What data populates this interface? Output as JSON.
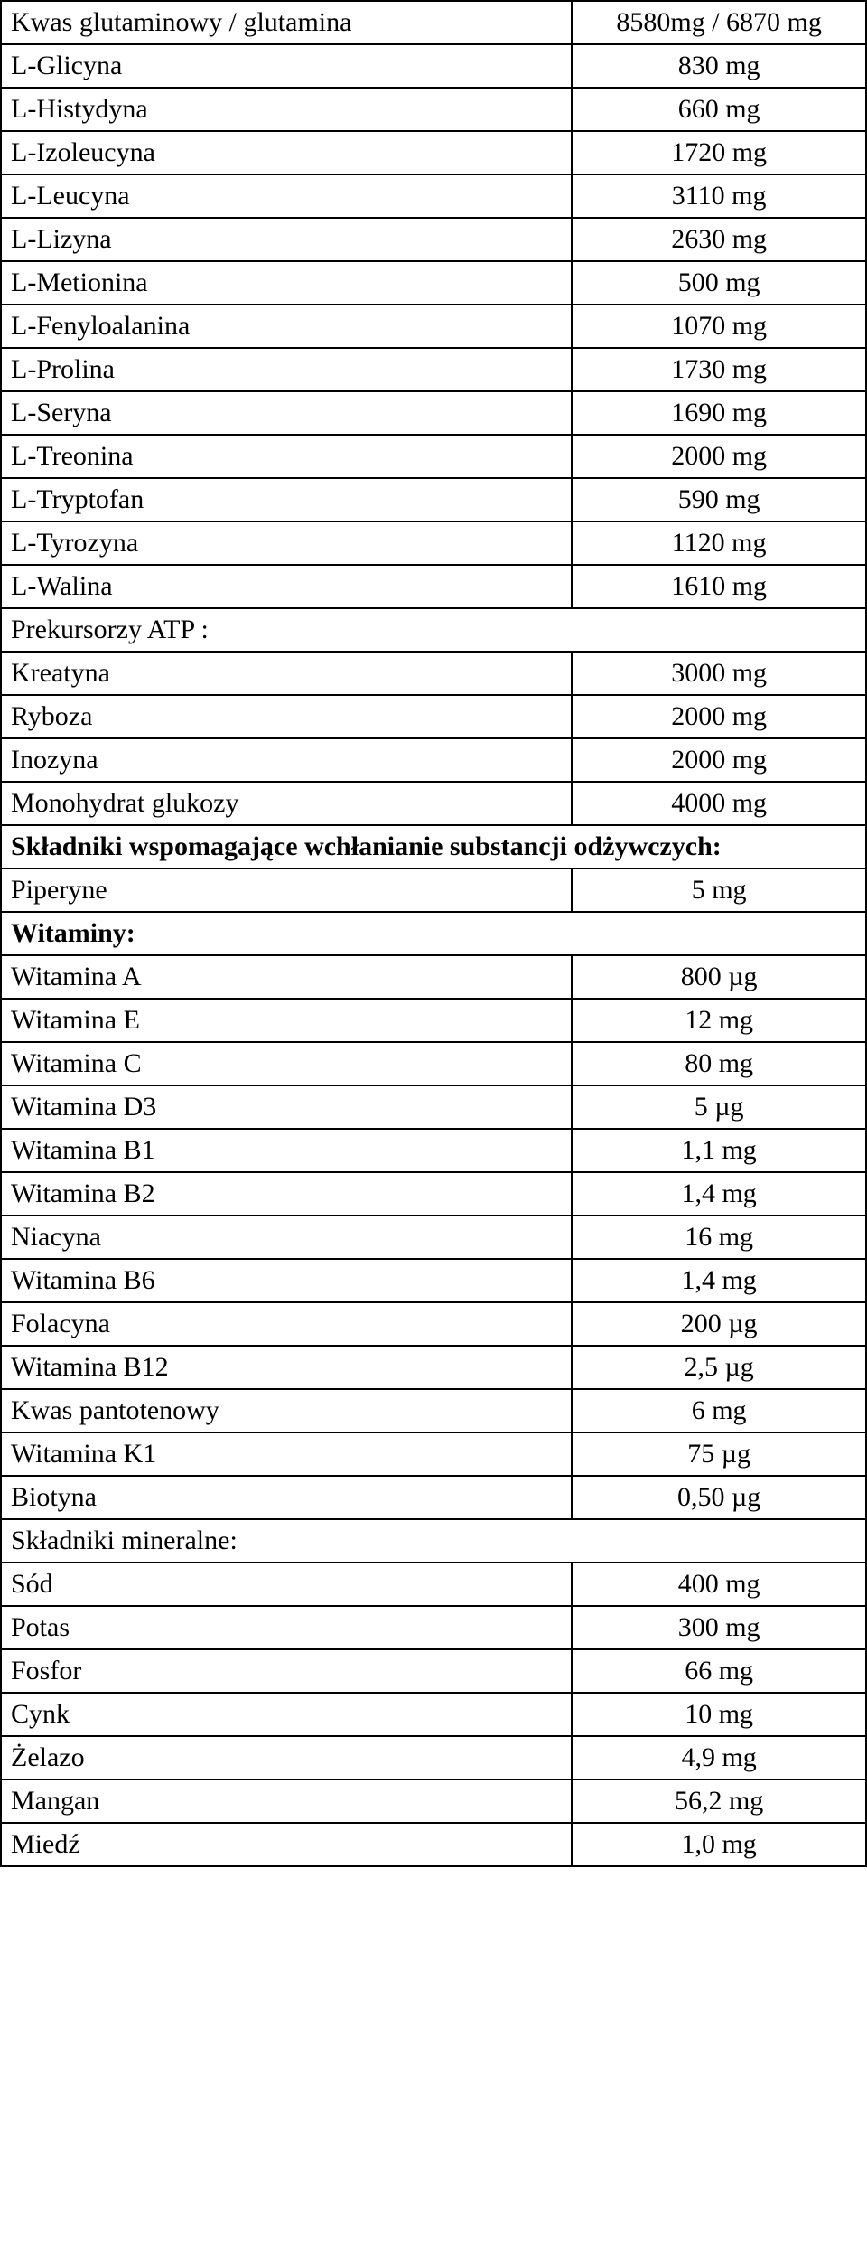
{
  "table": {
    "columns": [
      "label",
      "value"
    ],
    "col_widths": [
      "66%",
      "34%"
    ],
    "border_color": "#000000",
    "background_color": "#ffffff",
    "text_color": "#000000",
    "font_size": 30,
    "rows": [
      {
        "label": "Kwas glutaminowy / glutamina",
        "value": "8580mg / 6870 mg"
      },
      {
        "label": "L-Glicyna",
        "value": "830 mg"
      },
      {
        "label": "L-Histydyna",
        "value": "660 mg"
      },
      {
        "label": "L-Izoleucyna",
        "value": "1720 mg"
      },
      {
        "label": "L-Leucyna",
        "value": "3110 mg"
      },
      {
        "label": "L-Lizyna",
        "value": "2630 mg"
      },
      {
        "label": "L-Metionina",
        "value": "500 mg"
      },
      {
        "label": "L-Fenyloalanina",
        "value": "1070 mg"
      },
      {
        "label": "L-Prolina",
        "value": "1730 mg"
      },
      {
        "label": "L-Seryna",
        "value": "1690 mg"
      },
      {
        "label": "L-Treonina",
        "value": "2000 mg"
      },
      {
        "label": "L-Tryptofan",
        "value": "590 mg"
      },
      {
        "label": "L-Tyrozyna",
        "value": "1120 mg"
      },
      {
        "label": "L-Walina",
        "value": "1610 mg"
      },
      {
        "full": "Prekursorzy ATP :"
      },
      {
        "label": "Kreatyna",
        "value": "3000 mg"
      },
      {
        "label": "Ryboza",
        "value": "2000 mg"
      },
      {
        "label": "Inozyna",
        "value": "2000 mg"
      },
      {
        "label": "Monohydrat glukozy",
        "value": "4000 mg"
      },
      {
        "full": "Składniki wspomagające wchłanianie substancji odżywczych:",
        "bold": true
      },
      {
        "label": "Piperyne",
        "value": "5 mg"
      },
      {
        "full": "Witaminy:",
        "bold": true
      },
      {
        "label": "Witamina A",
        "value": "800 µg"
      },
      {
        "label": "Witamina E",
        "value": "12 mg"
      },
      {
        "label": "Witamina C",
        "value": "80 mg"
      },
      {
        "label": "Witamina D3",
        "value": "5 µg"
      },
      {
        "label": "Witamina B1",
        "value": "1,1 mg"
      },
      {
        "label": "Witamina B2",
        "value": "1,4 mg"
      },
      {
        "label": "Niacyna",
        "value": "16 mg"
      },
      {
        "label": "Witamina B6",
        "value": "1,4 mg"
      },
      {
        "label": "Folacyna",
        "value": "200 µg"
      },
      {
        "label": "Witamina B12",
        "value": "2,5 µg"
      },
      {
        "label": "Kwas pantotenowy",
        "value": "6 mg"
      },
      {
        "label": "Witamina K1",
        "value": "75 µg"
      },
      {
        "label": "Biotyna",
        "value": "0,50 µg"
      },
      {
        "full": "Składniki mineralne:"
      },
      {
        "label": "Sód",
        "value": "400 mg"
      },
      {
        "label": "Potas",
        "value": "300 mg"
      },
      {
        "label": "Fosfor",
        "value": "66 mg"
      },
      {
        "label": "Cynk",
        "value": "10 mg"
      },
      {
        "label": "Żelazo",
        "value": "4,9 mg"
      },
      {
        "label": "Mangan",
        "value": "56,2 mg"
      },
      {
        "label": "Miedź",
        "value": "1,0 mg"
      }
    ]
  }
}
